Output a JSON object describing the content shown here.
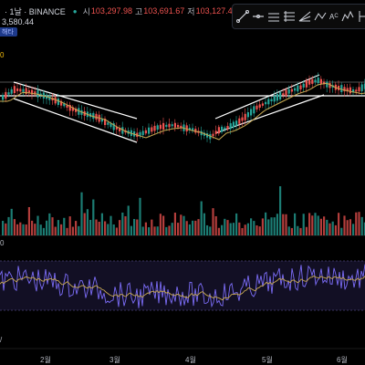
{
  "header": {
    "symbol": "· 1날 · BINANCE",
    "open_label": "시",
    "open": "103,297.98",
    "high_label": "고",
    "high": "103,691.67",
    "low_label": "저",
    "low": "103,127.48"
  },
  "price_box": "3,580.44",
  "sub_badge": "해타",
  "yellow_label": "0",
  "indicator_label": "0",
  "corner_label": "/",
  "toolbar": {
    "tools": [
      "trend-line-tool",
      "horizontal-line-tool",
      "channel-tool",
      "pitchfork-tool",
      "gann-tool",
      "pattern-tool",
      "fib-tool",
      "elliott-tool",
      "range-tool"
    ]
  },
  "x_axis": {
    "labels": [
      "2월",
      "3월",
      "4월",
      "5월",
      "6월"
    ]
  },
  "chart_data": {
    "type": "candlestick",
    "x_labels": [
      "2월",
      "3월",
      "4월",
      "5월",
      "6월"
    ],
    "colors": {
      "up": "#26a69a",
      "down": "#ef5350",
      "ma": "#c8a951",
      "level": "#ffffff",
      "rsi": "#7b6cf6",
      "rsi_signal": "#c8a951"
    }
  }
}
